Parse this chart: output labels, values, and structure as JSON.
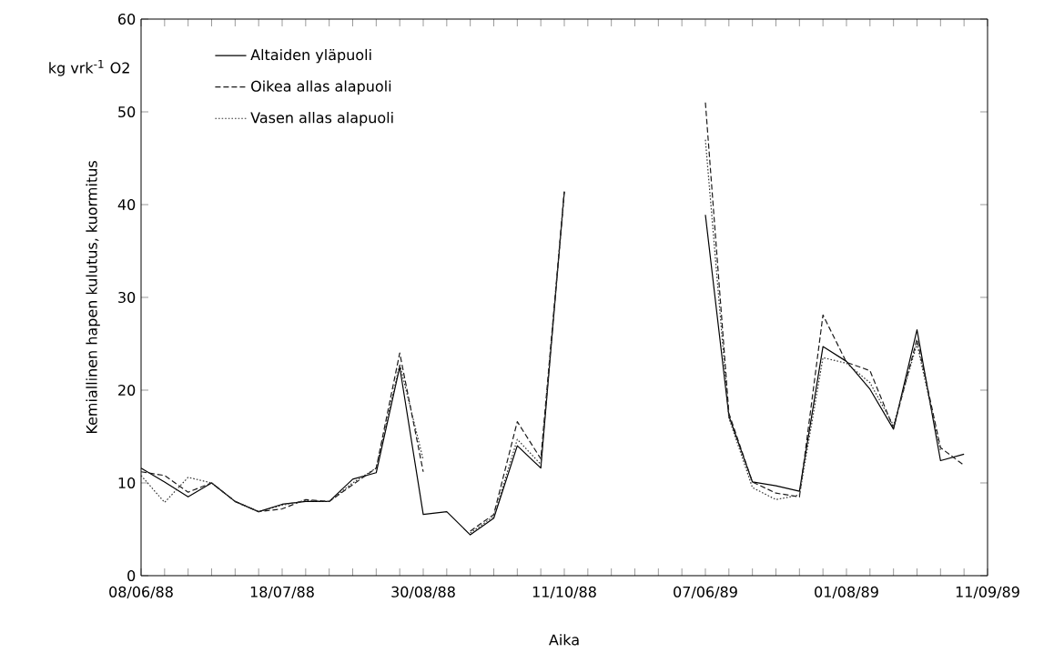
{
  "chart_data": {
    "type": "line",
    "xlabel": "Aika",
    "ylabel": "Kemiallinen hapen kulutus, kuormitus",
    "annotations": [
      "kg vrk$^{-1}$ O2"
    ],
    "categories": [
      "08/06/88",
      null,
      null,
      null,
      null,
      null,
      "18/07/88",
      null,
      null,
      null,
      null,
      null,
      "30/08/88",
      null,
      null,
      null,
      null,
      null,
      "11/10/88",
      null,
      null,
      null,
      null,
      null,
      "07/06/89",
      null,
      null,
      null,
      null,
      null,
      "01/08/89",
      null,
      null,
      null,
      null,
      null,
      "11/09/89"
    ],
    "series": [
      {
        "name": "Altaiden yläpuoli",
        "color": "#000000",
        "line_style": "solid",
        "values": [
          11.6,
          10.1,
          8.5,
          10.0,
          8.0,
          6.9,
          7.7,
          8.0,
          8.0,
          10.4,
          11.1,
          22.5,
          6.6,
          6.9,
          4.4,
          6.2,
          14.0,
          11.6,
          41.4,
          null,
          null,
          null,
          null,
          null,
          38.9,
          17.2,
          10.1,
          9.7,
          9.1,
          24.7,
          23.1,
          20.1,
          15.8,
          26.5,
          12.4,
          13.1,
          null
        ]
      },
      {
        "name": "Oikea allas alapuoli",
        "color": "#1a1a1a",
        "line_style": "dashed",
        "values": [
          11.2,
          10.8,
          9.0,
          10.0,
          8.0,
          6.9,
          7.2,
          8.2,
          8.0,
          9.8,
          11.6,
          24.0,
          11.2,
          null,
          4.8,
          6.6,
          16.6,
          12.6,
          41.4,
          null,
          null,
          null,
          null,
          null,
          51.0,
          17.5,
          10.1,
          8.9,
          8.5,
          28.1,
          23.0,
          22.1,
          15.9,
          25.5,
          13.8,
          11.9,
          null
        ]
      },
      {
        "name": "Vasen allas alapuoli",
        "color": "#333333",
        "line_style": "dotted",
        "values": [
          10.8,
          7.9,
          10.6,
          10.0,
          8.0,
          6.9,
          7.6,
          8.1,
          8.0,
          10.0,
          11.6,
          22.8,
          12.5,
          null,
          4.6,
          6.4,
          14.7,
          12.0,
          41.4,
          null,
          null,
          null,
          null,
          null,
          47.0,
          17.0,
          9.5,
          8.2,
          8.7,
          23.5,
          22.9,
          20.8,
          16.2,
          25.0,
          13.5,
          null,
          null
        ]
      }
    ],
    "ylim": [
      0,
      60
    ],
    "yticks": [
      0,
      10,
      20,
      30,
      40,
      50,
      60
    ],
    "legend": "top left"
  }
}
